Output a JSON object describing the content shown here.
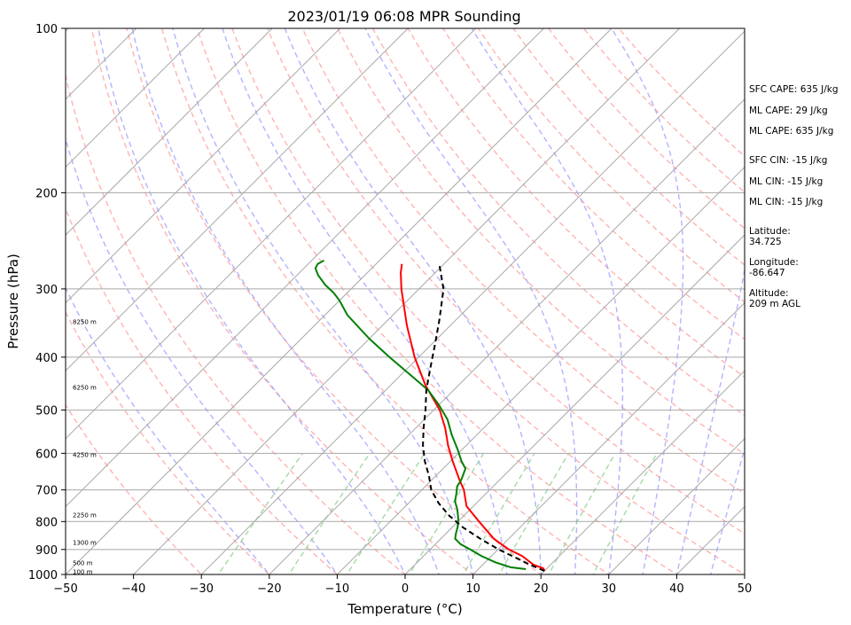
{
  "chart_data": {
    "type": "line",
    "subtype": "skew-t log-p sounding",
    "title": "2023/01/19 06:08 MPR Sounding",
    "xlabel": "Temperature (°C)",
    "ylabel": "Pressure (hPa)",
    "xlim": [
      -50,
      50
    ],
    "ylim": [
      1000,
      100
    ],
    "yscale": "log",
    "grid": true,
    "x_ticks": [
      -50,
      -40,
      -30,
      -20,
      -10,
      0,
      10,
      20,
      30,
      40,
      50
    ],
    "x_tick_labels": [
      "−50",
      "−40",
      "−30",
      "−20",
      "−10",
      "0",
      "10",
      "20",
      "30",
      "40",
      "50"
    ],
    "y_ticks": [
      1000,
      900,
      800,
      700,
      600,
      500,
      400,
      300,
      200,
      100
    ],
    "y_tick_labels": [
      "1000",
      "900",
      "800",
      "700",
      "600",
      "500",
      "400",
      "300",
      "200",
      "100"
    ],
    "height_labels": [
      {
        "p": 990,
        "text": "100 m"
      },
      {
        "p": 955,
        "text": "500 m"
      },
      {
        "p": 875,
        "text": "1300 m"
      },
      {
        "p": 780,
        "text": "2250 m"
      },
      {
        "p": 605,
        "text": "4250 m"
      },
      {
        "p": 455,
        "text": "6250 m"
      },
      {
        "p": 345,
        "text": "8250 m"
      }
    ],
    "series": [
      {
        "name": "Temperature",
        "color": "#ff0000",
        "style": "solid",
        "points": [
          [
            20.0,
            985
          ],
          [
            19.5,
            975
          ],
          [
            17.5,
            960
          ],
          [
            14.5,
            925
          ],
          [
            11.6,
            900
          ],
          [
            7.8,
            860
          ],
          [
            3.1,
            800
          ],
          [
            -1.0,
            750
          ],
          [
            -3.8,
            700
          ],
          [
            -6.0,
            670
          ],
          [
            -9.7,
            620
          ],
          [
            -12.7,
            580
          ],
          [
            -15.6,
            540
          ],
          [
            -19.1,
            500
          ],
          [
            -24.9,
            450
          ],
          [
            -30.6,
            400
          ],
          [
            -36.4,
            350
          ],
          [
            -42.6,
            300
          ],
          [
            -45.1,
            280
          ],
          [
            -46.2,
            270
          ]
        ]
      },
      {
        "name": "Dewpoint",
        "color": "#008000",
        "style": "solid",
        "points": [
          [
            17.0,
            978
          ],
          [
            14.5,
            970
          ],
          [
            11.5,
            950
          ],
          [
            8.5,
            925
          ],
          [
            5.9,
            900
          ],
          [
            3.7,
            880
          ],
          [
            2.1,
            860
          ],
          [
            1.4,
            840
          ],
          [
            0.8,
            820
          ],
          [
            -0.4,
            790
          ],
          [
            -1.9,
            760
          ],
          [
            -3.4,
            735
          ],
          [
            -4.4,
            710
          ],
          [
            -5.3,
            690
          ],
          [
            -5.7,
            670
          ],
          [
            -6.7,
            640
          ],
          [
            -8.4,
            620
          ],
          [
            -10.7,
            590
          ],
          [
            -13.7,
            555
          ],
          [
            -16.6,
            520
          ],
          [
            -19.9,
            490
          ],
          [
            -23.7,
            460
          ],
          [
            -28.8,
            430
          ],
          [
            -34.3,
            400
          ],
          [
            -40.0,
            370
          ],
          [
            -46.7,
            335
          ],
          [
            -50.0,
            315
          ],
          [
            -52.0,
            305
          ],
          [
            -54.4,
            295
          ],
          [
            -56.9,
            283
          ],
          [
            -58.3,
            275
          ],
          [
            -58.6,
            270
          ],
          [
            -58.2,
            266
          ]
        ]
      },
      {
        "name": "Parcel",
        "color": "#000000",
        "style": "dashed",
        "points": [
          [
            20.0,
            985
          ],
          [
            17.0,
            960
          ],
          [
            13.6,
            930
          ],
          [
            10.1,
            900
          ],
          [
            5.8,
            860
          ],
          [
            1.6,
            820
          ],
          [
            -2.2,
            780
          ],
          [
            -5.6,
            740
          ],
          [
            -8.6,
            700
          ],
          [
            -11.0,
            660
          ],
          [
            -13.8,
            620
          ],
          [
            -16.4,
            580
          ],
          [
            -18.8,
            540
          ],
          [
            -21.2,
            500
          ],
          [
            -24.0,
            460
          ],
          [
            -26.6,
            420
          ],
          [
            -29.4,
            380
          ],
          [
            -32.6,
            340
          ],
          [
            -36.4,
            300
          ],
          [
            -40.7,
            270
          ]
        ]
      }
    ],
    "isotherms_c": [
      -150,
      -140,
      -130,
      -120,
      -110,
      -100,
      -90,
      -80,
      -70,
      -60,
      -50,
      -40,
      -30,
      -20,
      -10,
      0,
      10,
      20,
      30,
      40,
      50
    ],
    "dry_adiabats_c": [
      -30,
      -20,
      -10,
      0,
      10,
      20,
      30,
      40,
      50,
      60,
      70,
      80,
      90,
      100,
      110,
      120,
      130,
      140,
      150,
      160
    ],
    "moist_adiabats_c": [
      -20,
      -10,
      0,
      5,
      10,
      15,
      20,
      25,
      30,
      35,
      40,
      45
    ],
    "mixing_ratios_gkg": [
      0.4,
      1,
      2,
      4,
      7,
      10,
      16,
      24
    ],
    "colors": {
      "temperature": "#ff0000",
      "dewpoint": "#008000",
      "parcel": "#000000",
      "dry_adiabat": "#ff9a9a",
      "moist_adiabat": "#9a9aff",
      "mixing_ratio": "#8fcf8f",
      "isotherm": "#a8a8a8",
      "isobar": "#a8a8a8"
    }
  },
  "indices": {
    "sfc_cape": "SFC CAPE: 635 J/kg",
    "ml_cape": "ML CAPE: 29 J/kg",
    "mu_cape": "ML CAPE: 635 J/kg",
    "sfc_cin": "SFC CIN: -15 J/kg",
    "ml_cin": "ML CIN: -15 J/kg",
    "mu_cin": "ML CIN: -15 J/kg"
  },
  "location": {
    "latitude_label": "Latitude:",
    "latitude_value": "34.725",
    "longitude_label": "Longitude:",
    "longitude_value": "-86.647",
    "altitude_label": "Altitude:",
    "altitude_value": "209 m AGL"
  }
}
